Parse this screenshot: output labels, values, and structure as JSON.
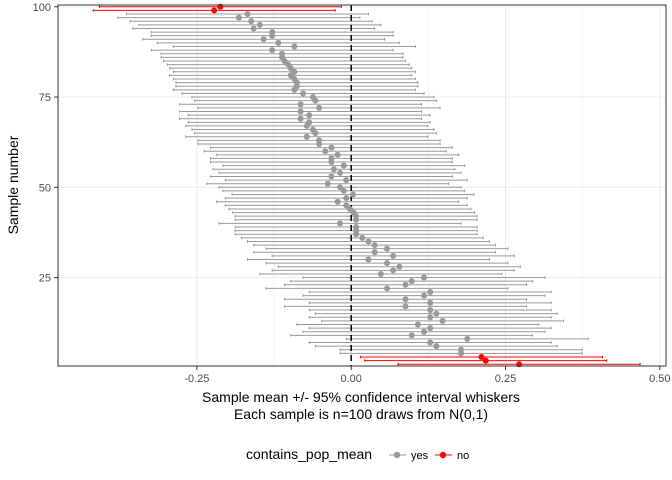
{
  "chart_data": {
    "type": "errorbar",
    "title": "",
    "xlabel_line1": "Sample mean +/- 95% confidence interval whiskers",
    "xlabel_line2": "Each sample is n=100 draws from N(0,1)",
    "ylabel": "Sample number",
    "xlim": [
      -0.475,
      0.51
    ],
    "ylim": [
      0.5,
      100.5
    ],
    "x_ticks": [
      -0.25,
      0.0,
      0.25,
      0.5
    ],
    "x_tick_labels": [
      "-0.25",
      "0.00",
      "0.25",
      "0.50"
    ],
    "y_ticks": [
      25,
      50,
      75,
      100
    ],
    "y_tick_labels": [
      "25",
      "50",
      "75",
      "100"
    ],
    "reference_line": 0.0,
    "half_width": 0.196,
    "colors": {
      "yes": "#999999",
      "no": "#ff0000"
    },
    "legend": {
      "title": "contains_pop_mean",
      "entries": [
        {
          "label": "yes",
          "color": "#999999"
        },
        {
          "label": "no",
          "color": "#ff0000"
        }
      ]
    },
    "means": [
      0.272,
      0.218,
      0.211,
      0.178,
      0.178,
      0.138,
      0.128,
      0.188,
      0.098,
      0.118,
      0.128,
      0.108,
      0.148,
      0.128,
      0.138,
      0.128,
      0.088,
      0.128,
      0.088,
      0.118,
      0.128,
      0.058,
      0.088,
      0.098,
      0.118,
      0.048,
      0.068,
      0.078,
      0.058,
      0.028,
      0.068,
      0.038,
      0.058,
      0.038,
      0.028,
      0.018,
      0.008,
      0.008,
      0.008,
      -0.018,
      0.008,
      0.008,
      0.004,
      -0.002,
      -0.008,
      -0.022,
      -0.008,
      0.003,
      -0.012,
      -0.018,
      -0.038,
      -0.008,
      -0.032,
      -0.018,
      -0.028,
      -0.012,
      -0.032,
      -0.032,
      -0.022,
      -0.042,
      -0.032,
      -0.052,
      -0.052,
      -0.072,
      -0.058,
      -0.062,
      -0.072,
      -0.068,
      -0.082,
      -0.068,
      -0.082,
      -0.052,
      -0.082,
      -0.058,
      -0.062,
      -0.078,
      -0.092,
      -0.088,
      -0.088,
      -0.092,
      -0.098,
      -0.092,
      -0.098,
      -0.102,
      -0.108,
      -0.112,
      -0.112,
      -0.128,
      -0.092,
      -0.118,
      -0.142,
      -0.128,
      -0.128,
      -0.158,
      -0.148,
      -0.162,
      -0.182,
      -0.168,
      -0.222,
      -0.212
    ]
  }
}
